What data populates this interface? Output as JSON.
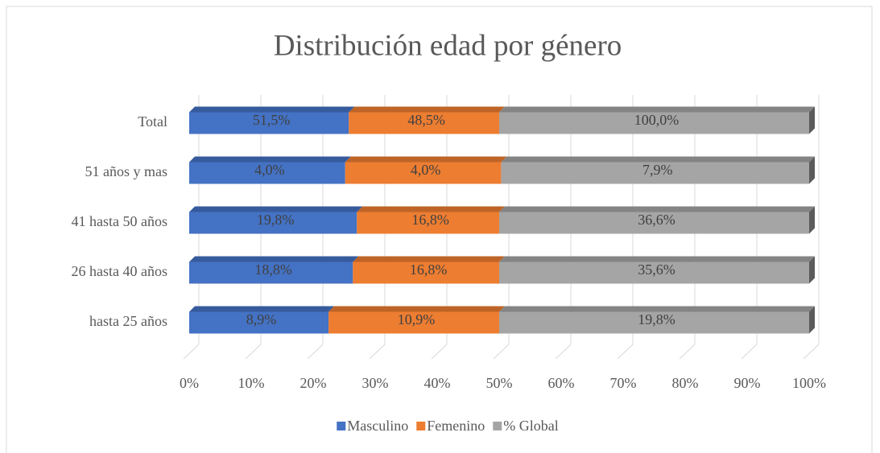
{
  "chart_data": {
    "type": "bar",
    "orientation": "horizontal",
    "stacking": "percent",
    "title": "Distribución edad por género",
    "categories": [
      "Total",
      "51 años y mas",
      "41 hasta 50 años",
      "26 hasta 40 años",
      "hasta 25 años"
    ],
    "series": [
      {
        "name": "Masculino",
        "color": "#4472c4",
        "values": [
          51.5,
          4.0,
          19.8,
          18.8,
          8.9
        ],
        "value_labels": [
          "51,5%",
          "4,0%",
          "19,8%",
          "18,8%",
          "8,9%"
        ]
      },
      {
        "name": "Femenino",
        "color": "#ed7d31",
        "values": [
          48.5,
          4.0,
          16.8,
          16.8,
          10.9
        ],
        "value_labels": [
          "48,5%",
          "4,0%",
          "16,8%",
          "16,8%",
          "10,9%"
        ]
      },
      {
        "name": "% Global",
        "color": "#a5a5a5",
        "values": [
          100.0,
          7.9,
          36.6,
          35.6,
          19.8
        ],
        "value_labels": [
          "100,0%",
          "7,9%",
          "36,6%",
          "35,6%",
          "19,8%"
        ]
      }
    ],
    "xlim": [
      0,
      100
    ],
    "xticks": [
      {
        "value": 0,
        "label": "0%"
      },
      {
        "value": 10,
        "label": "10%"
      },
      {
        "value": 20,
        "label": "20%"
      },
      {
        "value": 30,
        "label": "30%"
      },
      {
        "value": 40,
        "label": "40%"
      },
      {
        "value": 50,
        "label": "50%"
      },
      {
        "value": 60,
        "label": "60%"
      },
      {
        "value": 70,
        "label": "70%"
      },
      {
        "value": 80,
        "label": "80%"
      },
      {
        "value": 90,
        "label": "90%"
      },
      {
        "value": 100,
        "label": "100%"
      }
    ],
    "grid": true,
    "legend": "bottom"
  }
}
